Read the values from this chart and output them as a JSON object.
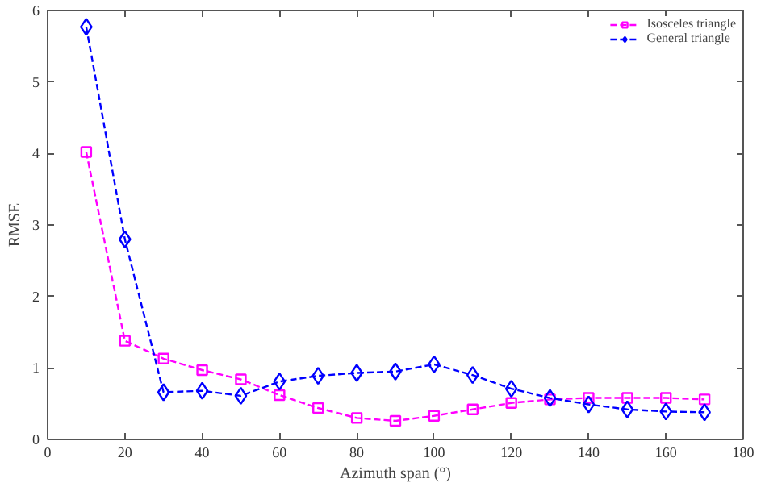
{
  "chart_data": {
    "type": "line",
    "xlabel": "Azimuth span (°)",
    "ylabel": "RMSE",
    "x": [
      10,
      20,
      30,
      40,
      50,
      60,
      70,
      80,
      90,
      100,
      110,
      120,
      130,
      140,
      150,
      160,
      170
    ],
    "series": [
      {
        "name": "Isosceles triangle",
        "color": "#ff00ff",
        "marker": "square",
        "values": [
          4.02,
          1.38,
          1.13,
          0.97,
          0.84,
          0.62,
          0.44,
          0.3,
          0.26,
          0.33,
          0.42,
          0.51,
          0.56,
          0.58,
          0.58,
          0.58,
          0.56
        ]
      },
      {
        "name": "General triangle",
        "color": "#0000ff",
        "marker": "diamond",
        "values": [
          5.77,
          2.8,
          0.66,
          0.68,
          0.61,
          0.81,
          0.89,
          0.93,
          0.95,
          1.05,
          0.9,
          0.71,
          0.58,
          0.49,
          0.42,
          0.39,
          0.38
        ]
      }
    ],
    "line_style": "dashed",
    "xlim": [
      0,
      180
    ],
    "ylim": [
      0,
      6
    ],
    "xticks": [
      0,
      20,
      40,
      60,
      80,
      100,
      120,
      140,
      160,
      180
    ],
    "yticks": [
      0,
      1,
      2,
      3,
      4,
      5,
      6
    ],
    "grid": false,
    "legend": "top right"
  }
}
